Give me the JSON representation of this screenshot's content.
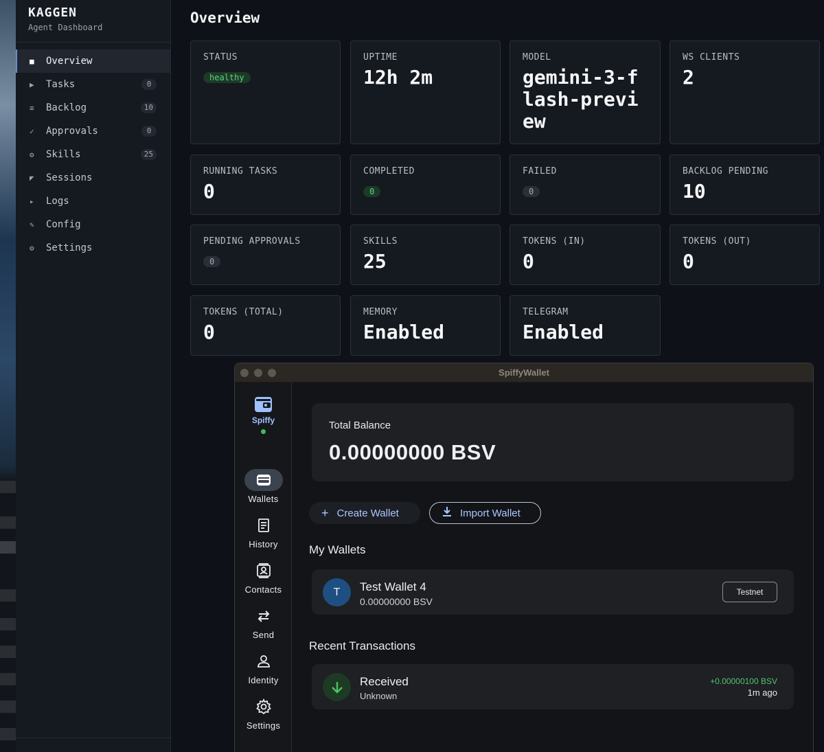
{
  "app": {
    "name": "KAGGEN",
    "subtitle": "Agent Dashboard"
  },
  "sidebar": {
    "items": [
      {
        "label": "Overview",
        "icon": "square-icon",
        "glyph": "■",
        "count": null,
        "active": true
      },
      {
        "label": "Tasks",
        "icon": "play-icon",
        "glyph": "▶",
        "count": "0"
      },
      {
        "label": "Backlog",
        "icon": "list-icon",
        "glyph": "≡",
        "count": "10"
      },
      {
        "label": "Approvals",
        "icon": "check-icon",
        "glyph": "✓",
        "count": "0"
      },
      {
        "label": "Skills",
        "icon": "gear-icon",
        "glyph": "⚙",
        "count": "25"
      },
      {
        "label": "Sessions",
        "icon": "corner-icon",
        "glyph": "◤",
        "count": null
      },
      {
        "label": "Logs",
        "icon": "small-triangle-icon",
        "glyph": "▸",
        "count": null
      },
      {
        "label": "Config",
        "icon": "pencil-icon",
        "glyph": "✎",
        "count": null
      },
      {
        "label": "Settings",
        "icon": "gear-icon",
        "glyph": "⚙",
        "count": null
      }
    ]
  },
  "overview": {
    "title": "Overview",
    "cards": {
      "status": {
        "label": "STATUS",
        "pill": "healthy"
      },
      "uptime": {
        "label": "UPTIME",
        "value": "12h 2m"
      },
      "model": {
        "label": "MODEL",
        "value": "gemini-3-flash-preview"
      },
      "ws_clients": {
        "label": "WS CLIENTS",
        "value": "2"
      },
      "running_tasks": {
        "label": "RUNNING TASKS",
        "value": "0"
      },
      "completed": {
        "label": "COMPLETED",
        "pill": "0"
      },
      "failed": {
        "label": "FAILED",
        "pill": "0"
      },
      "backlog_pending": {
        "label": "BACKLOG PENDING",
        "value": "10"
      },
      "pending_approvals": {
        "label": "PENDING APPROVALS",
        "pill": "0"
      },
      "skills": {
        "label": "SKILLS",
        "value": "25"
      },
      "tokens_in": {
        "label": "TOKENS (IN)",
        "value": "0"
      },
      "tokens_out": {
        "label": "TOKENS (OUT)",
        "value": "0"
      },
      "tokens_total": {
        "label": "TOKENS (TOTAL)",
        "value": "0"
      },
      "memory": {
        "label": "MEMORY",
        "value": "Enabled"
      },
      "telegram": {
        "label": "TELEGRAM",
        "value": "Enabled"
      }
    }
  },
  "wallet_window": {
    "title": "SpiffyWallet",
    "brand": "Spiffy",
    "nav": [
      {
        "label": "Wallets",
        "icon": "wallet-icon",
        "selected": true
      },
      {
        "label": "History",
        "icon": "receipt-icon"
      },
      {
        "label": "Contacts",
        "icon": "contacts-icon"
      },
      {
        "label": "Send",
        "icon": "swap-icon"
      },
      {
        "label": "Identity",
        "icon": "person-icon"
      },
      {
        "label": "Settings",
        "icon": "gear-icon"
      }
    ],
    "balance": {
      "label": "Total Balance",
      "value": "0.00000000 BSV"
    },
    "buttons": {
      "create": "Create Wallet",
      "import": "Import Wallet"
    },
    "my_wallets": {
      "heading": "My Wallets",
      "items": [
        {
          "initial": "T",
          "name": "Test Wallet 4",
          "balance": "0.00000000 BSV",
          "network": "Testnet"
        }
      ]
    },
    "recent": {
      "heading": "Recent Transactions",
      "items": [
        {
          "type": "Received",
          "counterparty": "Unknown",
          "amount": "+0.00000100 BSV",
          "time": "1m ago"
        }
      ]
    }
  },
  "colors": {
    "accent": "#6b8bd6",
    "healthy": "#5fd17f",
    "received": "#56c46b",
    "wallet_link": "#aac8ff"
  }
}
